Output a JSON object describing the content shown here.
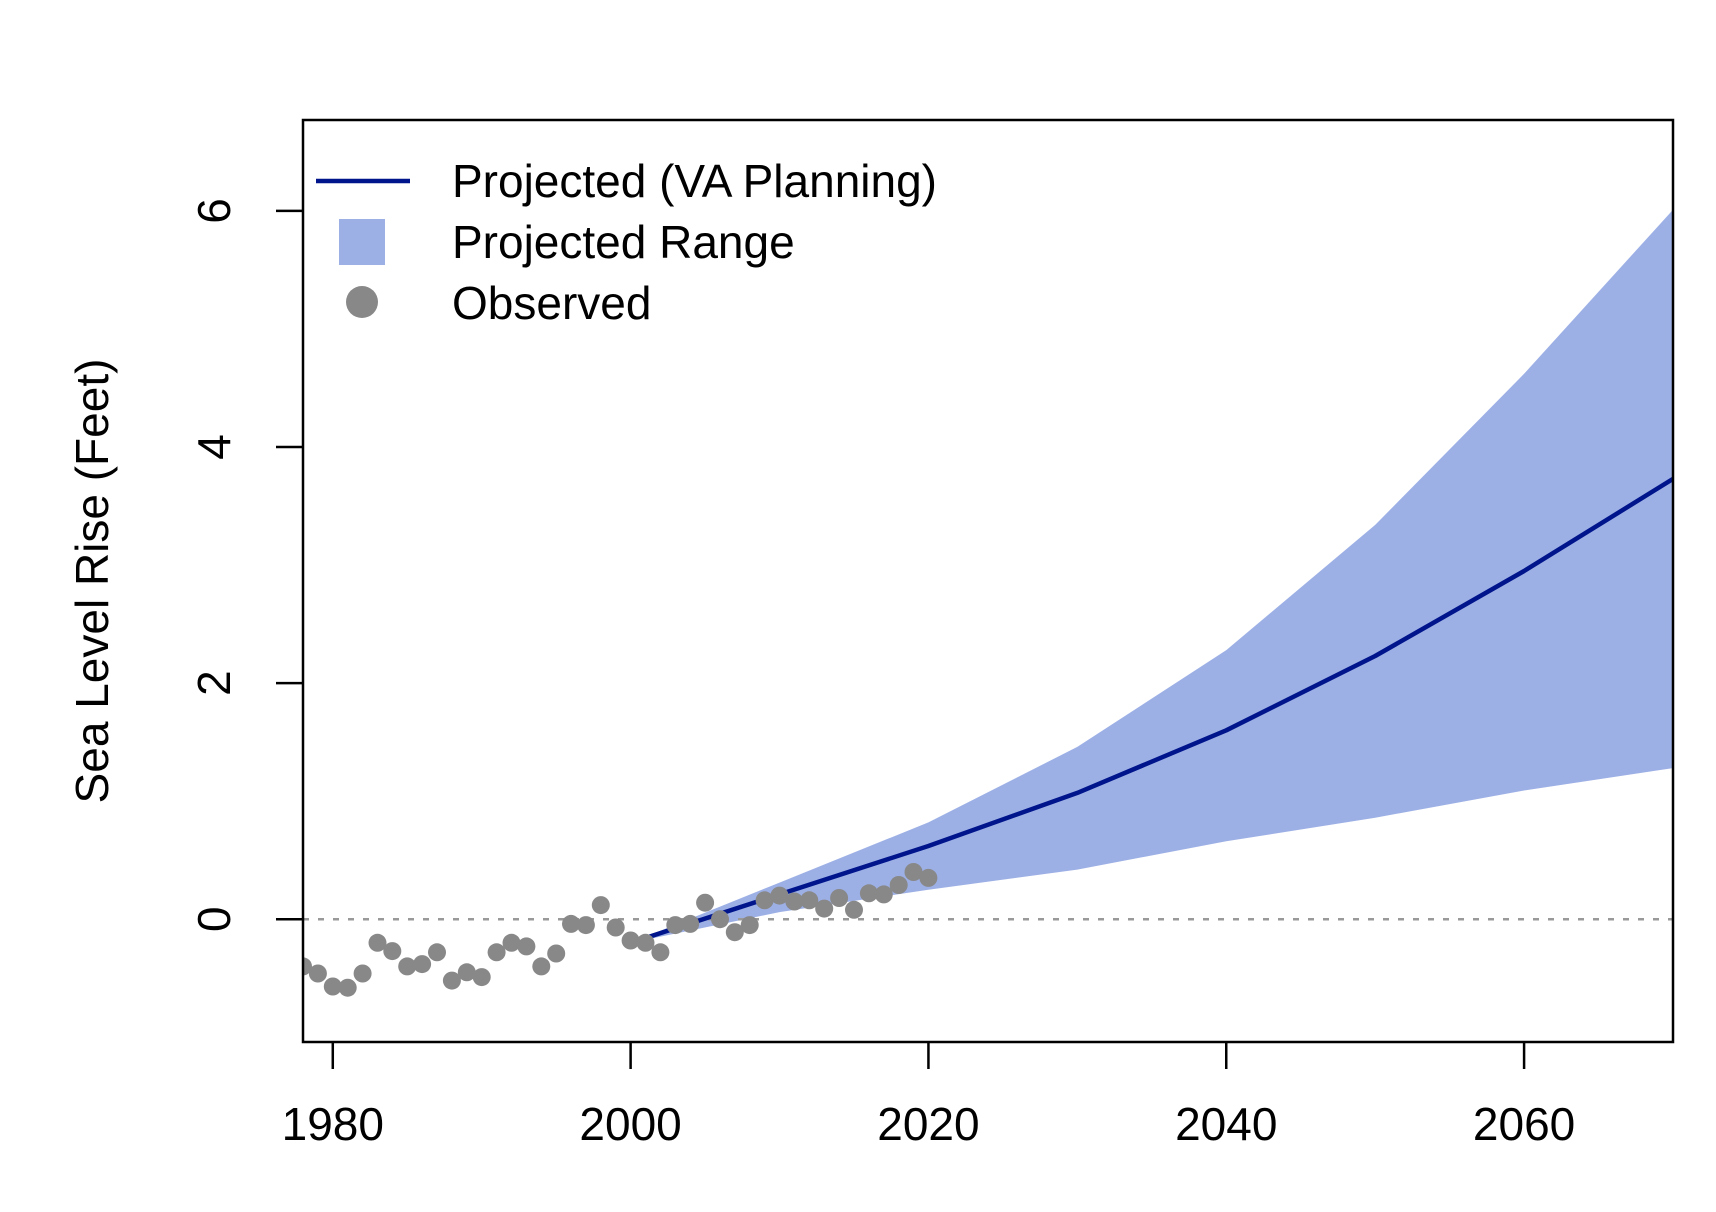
{
  "chart_data": {
    "type": "line",
    "title": "",
    "xlabel": "",
    "ylabel": "Sea Level Rise (Feet)",
    "xlim": [
      1978,
      2070
    ],
    "ylim": [
      -1.04,
      6.77
    ],
    "x_ticks": [
      1980,
      2000,
      2020,
      2040,
      2060
    ],
    "y_ticks": [
      0,
      2,
      4,
      6
    ],
    "grid": false,
    "legend": {
      "position": "top-left",
      "entries": [
        {
          "label": "Projected (VA Planning)",
          "symbol": "line"
        },
        {
          "label": "Projected Range",
          "symbol": "box"
        },
        {
          "label": "Observed",
          "symbol": "point"
        }
      ]
    },
    "reference_line": {
      "y": 0,
      "style": "dotted",
      "color": "#999999"
    },
    "colors": {
      "projected_line": "#00158C",
      "projected_range": "#9DB0E6",
      "observed": "#888888",
      "frame": "#000000"
    },
    "series": [
      {
        "name": "Projected (VA Planning)",
        "type": "line",
        "x": [
          2000,
          2010,
          2020,
          2030,
          2040,
          2050,
          2060,
          2070
        ],
        "y": [
          -0.2,
          0.21,
          0.62,
          1.07,
          1.6,
          2.23,
          2.95,
          3.73
        ]
      },
      {
        "name": "Projected Range",
        "type": "band",
        "x": [
          2000,
          2010,
          2020,
          2030,
          2040,
          2050,
          2060,
          2070
        ],
        "lower": [
          -0.2,
          0.06,
          0.25,
          0.42,
          0.66,
          0.86,
          1.09,
          1.28
        ],
        "upper": [
          -0.2,
          0.31,
          0.82,
          1.46,
          2.28,
          3.34,
          4.62,
          6.01
        ]
      },
      {
        "name": "Observed",
        "type": "scatter",
        "x": [
          1978,
          1979,
          1980,
          1981,
          1982,
          1983,
          1984,
          1985,
          1986,
          1987,
          1988,
          1989,
          1990,
          1991,
          1992,
          1993,
          1994,
          1995,
          1996,
          1997,
          1998,
          1999,
          2000,
          2001,
          2002,
          2003,
          2004,
          2005,
          2006,
          2007,
          2008,
          2009,
          2010,
          2011,
          2012,
          2013,
          2014,
          2015,
          2016,
          2017,
          2018,
          2019,
          2020
        ],
        "y": [
          -0.4,
          -0.46,
          -0.57,
          -0.58,
          -0.46,
          -0.2,
          -0.27,
          -0.4,
          -0.38,
          -0.28,
          -0.52,
          -0.45,
          -0.49,
          -0.28,
          -0.2,
          -0.23,
          -0.4,
          -0.29,
          -0.04,
          -0.05,
          0.12,
          -0.07,
          -0.18,
          -0.2,
          -0.28,
          -0.05,
          -0.04,
          0.14,
          0.0,
          -0.11,
          -0.05,
          0.16,
          0.2,
          0.15,
          0.16,
          0.09,
          0.18,
          0.08,
          0.22,
          0.21,
          0.29,
          0.4,
          0.35
        ]
      }
    ]
  }
}
